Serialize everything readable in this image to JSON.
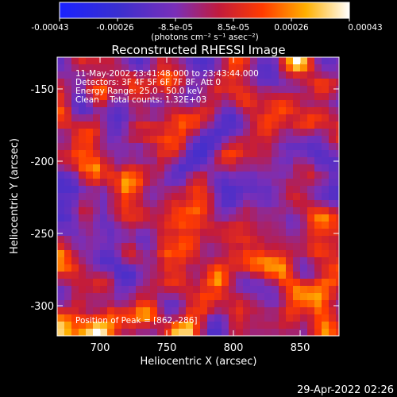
{
  "colorbar": {
    "tick_labels": [
      "-0.00043",
      "-0.00026",
      "-8.5e-05",
      "8.5e-05",
      "0.00026",
      "0.00043"
    ],
    "unit_label": "(photons cm⁻² s⁻¹ asec⁻²)",
    "range": [
      -0.00043,
      0.00043
    ],
    "colors": [
      "#1a22ff",
      "#3a2fd0",
      "#7a2fb8",
      "#c21b3c",
      "#ff3b00",
      "#ffb000",
      "#ffffff"
    ]
  },
  "plot": {
    "title": "Reconstructed RHESSI Image",
    "xlabel": "Heliocentric X (arcsec)",
    "ylabel": "Heliocentric Y (arcsec)",
    "x_ticks": [
      "700",
      "750",
      "800",
      "850"
    ],
    "y_ticks": [
      "-150",
      "-200",
      "-250",
      "-300"
    ],
    "xlim": [
      676,
      866
    ],
    "ylim": [
      -322,
      -128
    ],
    "info_lines": [
      "11-May-2002 23:41:48.000 to 23:43:44.000",
      "Detectors: 3F 4F 5F 6F 7F 8F, Att 0",
      "Energy Range: 25.0 - 50.0 keV",
      "Clean    Total counts: 1.32E+03"
    ],
    "peak_label": "Position of Peak = [862,-286]"
  },
  "timestamp": "29-Apr-2022 02:26"
}
